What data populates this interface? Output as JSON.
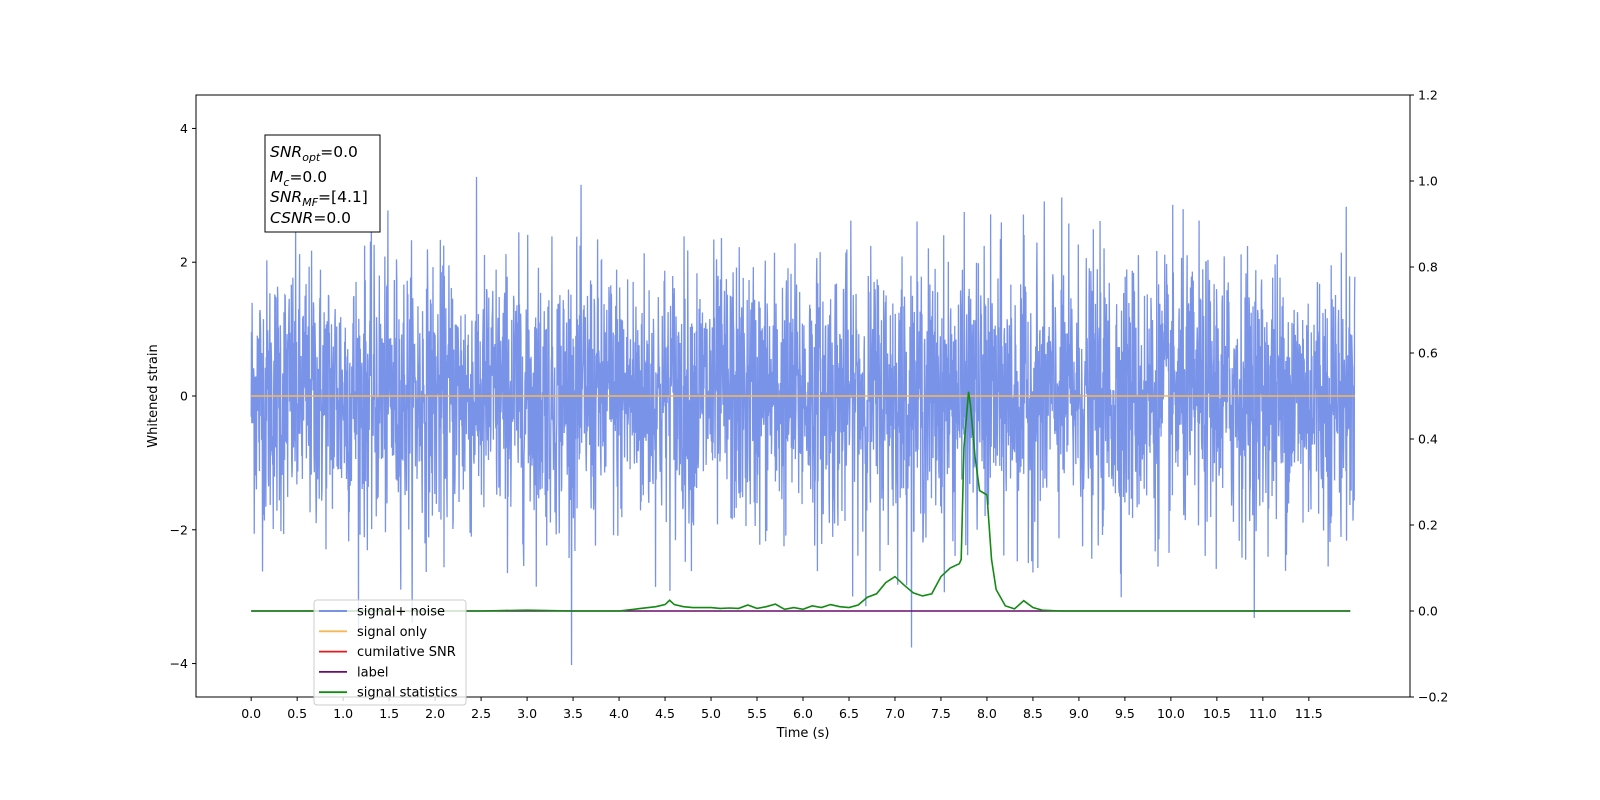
{
  "chart_data": {
    "type": "line",
    "xlabel": "Time (s)",
    "ylabel": "Whitened strain",
    "xlim": [
      -0.6,
      12.6
    ],
    "ylim": [
      -4.5,
      4.5
    ],
    "y2lim": [
      -0.2,
      1.2
    ],
    "x_ticks": [
      "0.0",
      "0.5",
      "1.0",
      "1.5",
      "2.0",
      "2.5",
      "3.0",
      "3.5",
      "4.0",
      "4.5",
      "5.0",
      "5.5",
      "6.0",
      "6.5",
      "7.0",
      "7.5",
      "8.0",
      "8.5",
      "9.0",
      "9.5",
      "10.0",
      "10.5",
      "11.0",
      "11.5"
    ],
    "y_ticks": [
      "−4",
      "−2",
      "0",
      "2",
      "4"
    ],
    "y2_ticks": [
      "−0.2",
      "0.0",
      "0.2",
      "0.4",
      "0.6",
      "0.8",
      "1.0",
      "1.2"
    ],
    "grid": false,
    "legend_position": "lower-left",
    "series": [
      {
        "name": "signal+ noise",
        "color": "#6a87e5",
        "axis": "left",
        "x_range": [
          0.0,
          12.0
        ],
        "amplitude": 1.0,
        "kind": "noise"
      },
      {
        "name": "signal only",
        "color": "#f7b756",
        "axis": "left",
        "x": [
          0.0,
          12.0
        ],
        "values": [
          0.0,
          0.0
        ]
      },
      {
        "name": "cumilative SNR",
        "color": "#e41a1c",
        "axis": "right",
        "x": [],
        "values": []
      },
      {
        "name": "label",
        "color": "#6a0d6d",
        "axis": "right",
        "x": [
          0.0,
          11.95
        ],
        "values": [
          0.0,
          0.0
        ]
      },
      {
        "name": "signal statistics",
        "color": "#138a13",
        "axis": "right",
        "x": [
          0.0,
          0.5,
          1.0,
          1.5,
          2.0,
          2.5,
          3.0,
          3.5,
          4.0,
          4.2,
          4.4,
          4.5,
          4.55,
          4.6,
          4.7,
          4.8,
          5.0,
          5.1,
          5.2,
          5.3,
          5.4,
          5.5,
          5.6,
          5.7,
          5.8,
          5.9,
          6.0,
          6.1,
          6.2,
          6.3,
          6.4,
          6.5,
          6.6,
          6.7,
          6.8,
          6.9,
          7.0,
          7.1,
          7.2,
          7.3,
          7.4,
          7.5,
          7.6,
          7.7,
          7.72,
          7.75,
          7.8,
          7.82,
          7.87,
          7.92,
          8.0,
          8.05,
          8.1,
          8.2,
          8.3,
          8.4,
          8.5,
          8.6,
          8.8,
          9.0,
          9.5,
          10.0,
          11.0,
          11.95
        ],
        "values": [
          0.0,
          0.0,
          0.0,
          0.0,
          0.0,
          0.0,
          0.002,
          0.0,
          0.0,
          0.005,
          0.01,
          0.015,
          0.025,
          0.015,
          0.01,
          0.008,
          0.008,
          0.006,
          0.007,
          0.006,
          0.014,
          0.006,
          0.01,
          0.016,
          0.004,
          0.008,
          0.004,
          0.012,
          0.008,
          0.015,
          0.01,
          0.008,
          0.014,
          0.032,
          0.04,
          0.066,
          0.08,
          0.06,
          0.042,
          0.035,
          0.04,
          0.08,
          0.1,
          0.11,
          0.12,
          0.38,
          0.51,
          0.48,
          0.36,
          0.28,
          0.27,
          0.12,
          0.05,
          0.012,
          0.005,
          0.024,
          0.008,
          0.002,
          0.0,
          0.0,
          0.0,
          0.0,
          0.0,
          0.0
        ]
      }
    ],
    "annotation": {
      "snr_opt": "=0.0",
      "mc": "=0.0",
      "snr_mf": "=[4.1]",
      "csnr": "=0.0"
    }
  }
}
